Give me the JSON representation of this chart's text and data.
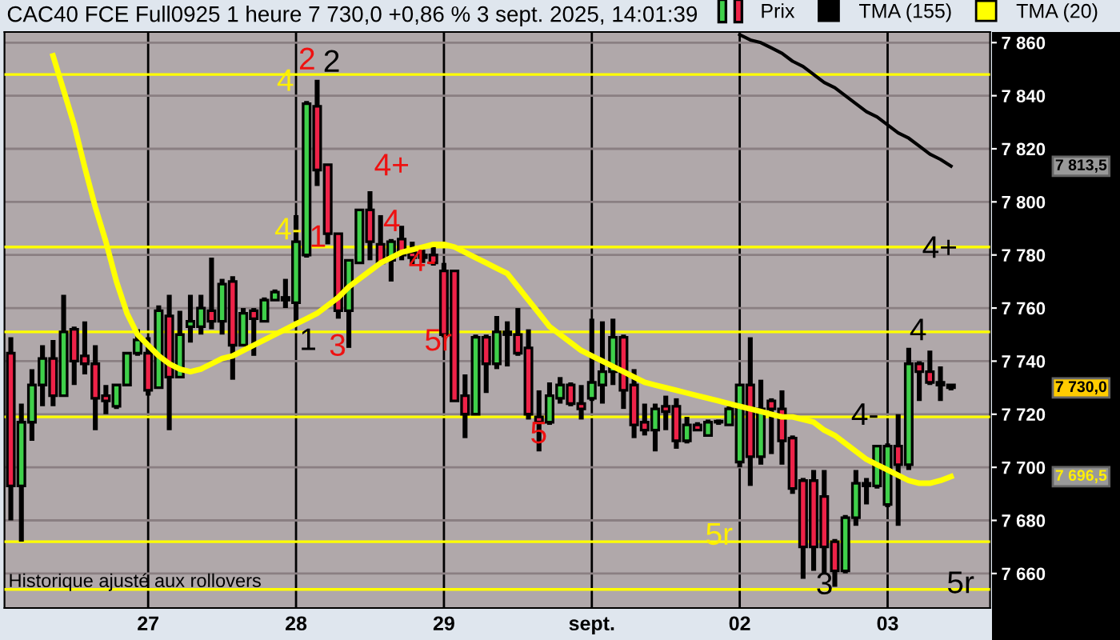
{
  "chart_data": {
    "type": "candlestick",
    "title": "CAC40 FCE Full0925 1 heure 7 730,0 +0,86 % 3 sept. 2025, 14:01:39",
    "categories": [
      null,
      null,
      null,
      null,
      null,
      null,
      null,
      null,
      null,
      null,
      null,
      null,
      null,
      "27",
      null,
      null,
      null,
      null,
      null,
      null,
      null,
      null,
      null,
      null,
      null,
      null,
      null,
      "28",
      null,
      null,
      null,
      null,
      null,
      null,
      null,
      null,
      null,
      null,
      null,
      null,
      null,
      "29",
      null,
      null,
      null,
      null,
      null,
      null,
      null,
      null,
      null,
      null,
      null,
      null,
      null,
      "sept.",
      null,
      null,
      null,
      null,
      null,
      null,
      null,
      null,
      null,
      null,
      null,
      null,
      null,
      "02",
      null,
      null,
      null,
      null,
      null,
      null,
      null,
      null,
      null,
      null,
      null,
      null,
      null,
      "03",
      null,
      null,
      null,
      null,
      null,
      null
    ],
    "series": [
      {
        "name": "Prix",
        "ohlc": [
          [
            7743,
            7749,
            7680,
            7693
          ],
          [
            7693,
            7724,
            7672,
            7717
          ],
          [
            7717,
            7737,
            7710,
            7731
          ],
          [
            7731,
            7746,
            7723,
            7741
          ],
          [
            7741,
            7748,
            7723,
            7727
          ],
          [
            7727,
            7765,
            7727,
            7751
          ],
          [
            7752,
            7753,
            7731,
            7740
          ],
          [
            7742,
            7755,
            7735,
            7739
          ],
          [
            7739,
            7746,
            7714,
            7726
          ],
          [
            7727,
            7731,
            7720,
            7725
          ],
          [
            7723,
            7731,
            7722,
            7731
          ],
          [
            7731,
            7743,
            7731,
            7743
          ],
          [
            7743,
            7752,
            7742,
            7748
          ],
          [
            7743,
            7749,
            7727,
            7729
          ],
          [
            7730,
            7761,
            7730,
            7759
          ],
          [
            7757,
            7765,
            7714,
            7734
          ],
          [
            7734,
            7759,
            7734,
            7750
          ],
          [
            7753,
            7765,
            7747,
            7755
          ],
          [
            7753,
            7765,
            7750,
            7760
          ],
          [
            7759,
            7779,
            7752,
            7755
          ],
          [
            7755,
            7771,
            7750,
            7769
          ],
          [
            7770,
            7772,
            7733,
            7746
          ],
          [
            7746,
            7760,
            7746,
            7758
          ],
          [
            7759,
            7760,
            7742,
            7756
          ],
          [
            7755,
            7764,
            7755,
            7763
          ],
          [
            7763,
            7767,
            7763,
            7766
          ],
          [
            7764,
            7771,
            7760,
            7763
          ],
          [
            7762,
            7795,
            7755,
            7785
          ],
          [
            7780,
            7838,
            7779,
            7837
          ],
          [
            7836,
            7846,
            7806,
            7812
          ],
          [
            7814,
            7814,
            7784,
            7788
          ],
          [
            7788,
            7788,
            7756,
            7759
          ],
          [
            7759,
            7778,
            7745,
            7778
          ],
          [
            7777,
            7797,
            7777,
            7797
          ],
          [
            7797,
            7804,
            7778,
            7785
          ],
          [
            7784,
            7795,
            7777,
            7777
          ],
          [
            7778,
            7786,
            7770,
            7785
          ],
          [
            7786,
            7791,
            7778,
            7780
          ],
          [
            7781,
            7785,
            7776,
            7779
          ],
          [
            7779,
            7782,
            7777,
            7780
          ],
          [
            7780,
            7783,
            7776,
            7777
          ],
          [
            7774,
            7777,
            7749,
            7750
          ],
          [
            7774,
            7774,
            7725,
            7725
          ],
          [
            7727,
            7735,
            7711,
            7720
          ],
          [
            7720,
            7750,
            7720,
            7749
          ],
          [
            7749,
            7750,
            7728,
            7739
          ],
          [
            7739,
            7757,
            7737,
            7751
          ],
          [
            7751,
            7755,
            7738,
            7750
          ],
          [
            7750,
            7760,
            7742,
            7743
          ],
          [
            7745,
            7752,
            7718,
            7720
          ],
          [
            7719,
            7729,
            7706,
            7717
          ],
          [
            7717,
            7732,
            7716,
            7727
          ],
          [
            7726,
            7734,
            7724,
            7731
          ],
          [
            7731,
            7732,
            7723,
            7724
          ],
          [
            7724,
            7731,
            7718,
            7722
          ],
          [
            7726,
            7756,
            7725,
            7732
          ],
          [
            7731,
            7755,
            7724,
            7736
          ],
          [
            7736,
            7756,
            7731,
            7749
          ],
          [
            7749,
            7750,
            7722,
            7729
          ],
          [
            7731,
            7737,
            7711,
            7716
          ],
          [
            7717,
            7724,
            7712,
            7714
          ],
          [
            7714,
            7724,
            7706,
            7722
          ],
          [
            7723,
            7727,
            7714,
            7721
          ],
          [
            7723,
            7726,
            7707,
            7710
          ],
          [
            7710,
            7719,
            7709,
            7716
          ],
          [
            7716,
            7717,
            7714,
            7714
          ],
          [
            7712,
            7718,
            7712,
            7717
          ],
          [
            7717,
            7718,
            7716,
            7717
          ],
          [
            7716,
            7723,
            7716,
            7722
          ],
          [
            7702,
            7731,
            7700,
            7731
          ],
          [
            7731,
            7749,
            7693,
            7704
          ],
          [
            7704,
            7733,
            7701,
            7722
          ],
          [
            7725,
            7726,
            7705,
            7722
          ],
          [
            7722,
            7729,
            7701,
            7710
          ],
          [
            7711,
            7712,
            7690,
            7692
          ],
          [
            7695,
            7696,
            7658,
            7670
          ],
          [
            7695,
            7699,
            7661,
            7670
          ],
          [
            7689,
            7699,
            7660,
            7670
          ],
          [
            7672,
            7673,
            7655,
            7661
          ],
          [
            7661,
            7682,
            7660,
            7681
          ],
          [
            7681,
            7699,
            7678,
            7694
          ],
          [
            7694,
            7696,
            7686,
            7693
          ],
          [
            7693,
            7708,
            7692,
            7708
          ],
          [
            7686,
            7709,
            7685,
            7708
          ],
          [
            7708,
            7720,
            7678,
            7701
          ],
          [
            7701,
            7745,
            7699,
            7739
          ],
          [
            7739,
            7740,
            7725,
            7736
          ],
          [
            7736,
            7744,
            7731,
            7732
          ],
          [
            7732,
            7738,
            7725,
            7731
          ],
          [
            7731,
            7731,
            7729,
            7730
          ]
        ]
      },
      {
        "name": "TMA (155)",
        "type": "line",
        "color": "#000000",
        "values": [
          null,
          null,
          null,
          null,
          null,
          null,
          null,
          null,
          null,
          null,
          null,
          null,
          null,
          null,
          null,
          null,
          null,
          null,
          null,
          null,
          null,
          null,
          null,
          null,
          null,
          null,
          null,
          null,
          null,
          null,
          null,
          null,
          null,
          null,
          null,
          null,
          null,
          null,
          null,
          null,
          null,
          null,
          null,
          null,
          null,
          null,
          null,
          null,
          null,
          null,
          null,
          null,
          null,
          null,
          null,
          null,
          null,
          null,
          null,
          null,
          null,
          null,
          null,
          null,
          null,
          null,
          null,
          null,
          null,
          7863,
          7861,
          7860,
          7858,
          7856,
          7853,
          7851,
          7848,
          7845,
          7843,
          7840,
          7837,
          7834,
          7832,
          7829,
          7826,
          7824,
          7821,
          7818,
          7816,
          7813.5
        ]
      },
      {
        "name": "TMA (20)",
        "type": "line",
        "color": "#ffff00",
        "values": [
          null,
          null,
          null,
          null,
          7855,
          7842,
          7829,
          7813,
          7798,
          7785,
          7770,
          7758,
          7750,
          7746,
          7742,
          7739,
          7737,
          7736,
          7737,
          7739,
          7741,
          7742,
          7744,
          7746,
          7748,
          7750,
          7752,
          7754,
          7756,
          7758,
          7761,
          7764,
          7768,
          7771,
          7774,
          7777,
          7779,
          7781,
          7782,
          7783,
          7784,
          7784,
          7783,
          7781,
          7779,
          7777,
          7775,
          7773,
          7768,
          7763,
          7758,
          7753,
          7750,
          7747,
          7744,
          7742,
          7740,
          7738,
          7736,
          7734,
          7732,
          7731,
          7730,
          7729,
          7728,
          7727,
          7726,
          7725,
          7724,
          7723,
          7722,
          7721,
          7720,
          7719,
          7719,
          7718,
          7717,
          7714,
          7712,
          7709,
          7706,
          7703,
          7701,
          7699,
          7697,
          7695,
          7694,
          7694,
          7695,
          7696.5
        ]
      }
    ],
    "ylim": [
      7647,
      7864
    ],
    "yticks": [
      {
        "value": 7660,
        "label": "7 660"
      },
      {
        "value": 7680,
        "label": "7 680"
      },
      {
        "value": 7700,
        "label": "7 700"
      },
      {
        "value": 7720,
        "label": "7 720"
      },
      {
        "value": 7740,
        "label": "7 740"
      },
      {
        "value": 7760,
        "label": "7 760"
      },
      {
        "value": 7780,
        "label": "7 780"
      },
      {
        "value": 7800,
        "label": "7 800"
      },
      {
        "value": 7820,
        "label": "7 820"
      },
      {
        "value": 7840,
        "label": "7 840"
      },
      {
        "value": 7860,
        "label": "7 860"
      }
    ],
    "ref_lines": [
      {
        "axis": "y",
        "value": 7848,
        "color": "#ffff00"
      },
      {
        "axis": "y",
        "value": 7783,
        "color": "#ffff00"
      },
      {
        "axis": "y",
        "value": 7751,
        "color": "#ffff00"
      },
      {
        "axis": "y",
        "value": 7719,
        "color": "#ffff00"
      },
      {
        "axis": "y",
        "value": 7672,
        "color": "#ffff00"
      },
      {
        "axis": "y",
        "value": 7654,
        "color": "#ffff00"
      }
    ],
    "annotations": [
      "4",
      "2",
      "2",
      "4-",
      "1",
      "1",
      "3",
      "4+",
      "4",
      "4-",
      "5r",
      "5",
      "5r",
      "3",
      "4-",
      "4",
      "4+",
      "5r",
      "Historique ajusté aux rollovers",
      "7 813,5",
      "7 730,0",
      "7 696,5"
    ],
    "grid": true,
    "legend": "top right"
  }
}
